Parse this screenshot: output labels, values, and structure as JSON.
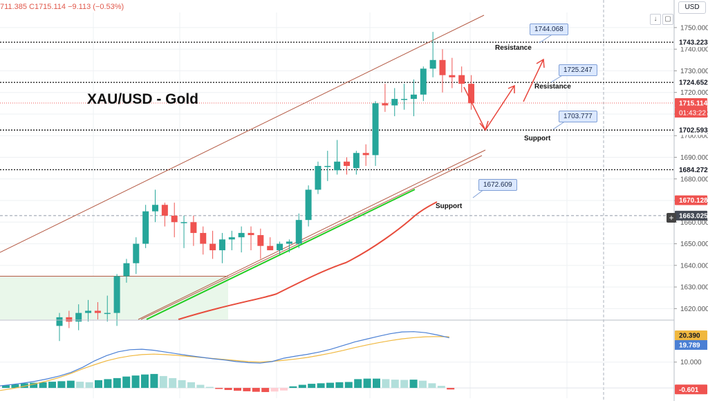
{
  "header": {
    "ohlc_text": "711.385  C1715.114  −9.113 (−0.53%)",
    "currency": "USD",
    "download_icon": "down-arrow-icon",
    "fullscreen_icon": "square-icon"
  },
  "title": "XAU/USD - Gold",
  "annotations": {
    "resistance": "Resistance",
    "support": "Support"
  },
  "colors": {
    "up": "#26a69a",
    "down": "#ef5350",
    "channel": "#b45a44",
    "green_line": "#22cc22",
    "red_ma": "#e74c3c",
    "macd_line": "#4a7fd4",
    "signal_line": "#f0b840",
    "box_fill": "#e9f7ea"
  },
  "chart_data": {
    "type": "candlestick",
    "symbol": "XAU/USD",
    "ylim": [
      1615,
      1757
    ],
    "y_ticks": [
      1620,
      1630,
      1640,
      1650,
      1660,
      1670,
      1680,
      1690,
      1700,
      1710,
      1720,
      1730,
      1740,
      1750
    ],
    "y_tick_labels": [
      "1620.000",
      "1630.000",
      "1640.000",
      "1650.000",
      "1660.000",
      "1670.000",
      "1680.000",
      "1690.000",
      "1700.000",
      "1710.000",
      "1720.000",
      "1730.000",
      "1740.000",
      "1750.000"
    ],
    "candles": [
      {
        "o": 1612,
        "h": 1618,
        "l": 1605,
        "c": 1616
      },
      {
        "o": 1616,
        "h": 1619,
        "l": 1611,
        "c": 1614
      },
      {
        "o": 1614,
        "h": 1622,
        "l": 1610,
        "c": 1618
      },
      {
        "o": 1618,
        "h": 1624,
        "l": 1614,
        "c": 1619
      },
      {
        "o": 1619,
        "h": 1623,
        "l": 1615,
        "c": 1618
      },
      {
        "o": 1618,
        "h": 1626,
        "l": 1614,
        "c": 1618
      },
      {
        "o": 1618,
        "h": 1636,
        "l": 1612,
        "c": 1635
      },
      {
        "o": 1635,
        "h": 1643,
        "l": 1632,
        "c": 1641
      },
      {
        "o": 1641,
        "h": 1653,
        "l": 1636,
        "c": 1650
      },
      {
        "o": 1650,
        "h": 1668,
        "l": 1648,
        "c": 1665
      },
      {
        "o": 1665,
        "h": 1675,
        "l": 1660,
        "c": 1668
      },
      {
        "o": 1668,
        "h": 1669,
        "l": 1658,
        "c": 1663
      },
      {
        "o": 1663,
        "h": 1669,
        "l": 1653,
        "c": 1660
      },
      {
        "o": 1660,
        "h": 1663,
        "l": 1648,
        "c": 1660
      },
      {
        "o": 1660,
        "h": 1663,
        "l": 1649,
        "c": 1655
      },
      {
        "o": 1655,
        "h": 1658,
        "l": 1645,
        "c": 1650
      },
      {
        "o": 1650,
        "h": 1656,
        "l": 1643,
        "c": 1647
      },
      {
        "o": 1647,
        "h": 1655,
        "l": 1641,
        "c": 1652
      },
      {
        "o": 1652,
        "h": 1656,
        "l": 1647,
        "c": 1653
      },
      {
        "o": 1653,
        "h": 1658,
        "l": 1646,
        "c": 1655
      },
      {
        "o": 1655,
        "h": 1658,
        "l": 1647,
        "c": 1654
      },
      {
        "o": 1654,
        "h": 1657,
        "l": 1643,
        "c": 1649
      },
      {
        "o": 1649,
        "h": 1653,
        "l": 1647,
        "c": 1647
      },
      {
        "o": 1647,
        "h": 1651,
        "l": 1645,
        "c": 1650
      },
      {
        "o": 1650,
        "h": 1652,
        "l": 1646,
        "c": 1651
      },
      {
        "o": 1650,
        "h": 1664,
        "l": 1648,
        "c": 1661
      },
      {
        "o": 1661,
        "h": 1677,
        "l": 1658,
        "c": 1675
      },
      {
        "o": 1675,
        "h": 1688,
        "l": 1673,
        "c": 1686
      },
      {
        "o": 1686,
        "h": 1693,
        "l": 1679,
        "c": 1686
      },
      {
        "o": 1684,
        "h": 1698,
        "l": 1682,
        "c": 1688
      },
      {
        "o": 1688,
        "h": 1690,
        "l": 1682,
        "c": 1686
      },
      {
        "o": 1685,
        "h": 1693,
        "l": 1682,
        "c": 1692
      },
      {
        "o": 1692,
        "h": 1696,
        "l": 1686,
        "c": 1691
      },
      {
        "o": 1691,
        "h": 1716,
        "l": 1686,
        "c": 1715
      },
      {
        "o": 1715,
        "h": 1724,
        "l": 1711,
        "c": 1714
      },
      {
        "o": 1714,
        "h": 1722,
        "l": 1709,
        "c": 1717
      },
      {
        "o": 1717,
        "h": 1724,
        "l": 1712,
        "c": 1717
      },
      {
        "o": 1717,
        "h": 1726,
        "l": 1709,
        "c": 1719
      },
      {
        "o": 1719,
        "h": 1732,
        "l": 1716,
        "c": 1731
      },
      {
        "o": 1731,
        "h": 1748,
        "l": 1727,
        "c": 1735
      },
      {
        "o": 1735,
        "h": 1740,
        "l": 1720,
        "c": 1728
      },
      {
        "o": 1728,
        "h": 1736,
        "l": 1722,
        "c": 1727
      },
      {
        "o": 1728,
        "h": 1732,
        "l": 1720,
        "c": 1724
      },
      {
        "o": 1724,
        "h": 1728,
        "l": 1712,
        "c": 1715
      }
    ],
    "price_levels": [
      {
        "value": 1743.223,
        "label": "1743.223"
      },
      {
        "value": 1724.652,
        "label": "1724.652"
      },
      {
        "value": 1702.593,
        "label": "1702.593"
      },
      {
        "value": 1684.272,
        "label": "1684.272"
      }
    ],
    "current_price": {
      "value": 1715.114,
      "label": "1715.114",
      "countdown": "01:43:22"
    },
    "other_level": {
      "value": 1670.128,
      "label": "1670.128"
    },
    "crosshair": {
      "value": 1663.025,
      "label": "1663.025"
    },
    "callouts": [
      {
        "label": "1744.068",
        "value": 1744.068
      },
      {
        "label": "1725.247",
        "value": 1725.247
      },
      {
        "label": "1703.777",
        "value": 1703.777
      },
      {
        "label": "1672.609",
        "value": 1672.609
      }
    ],
    "macd": {
      "ylim": [
        -4,
        26
      ],
      "tick_label": "10.000",
      "tick_value": 10,
      "upper_label": "20.390",
      "upper_value": 20.39,
      "mid_label": "19.789",
      "mid_value": 19.789,
      "hist_label": "-0.601",
      "hist_value": -0.601,
      "histogram": [
        1,
        1.4,
        1.8,
        2,
        2.2,
        2.4,
        2.6,
        2.8,
        2.4,
        2.2,
        3,
        3.4,
        3.8,
        4.4,
        4.8,
        5.2,
        5.4,
        4.6,
        3.8,
        3,
        2.2,
        1.2,
        0.4,
        -0.4,
        -0.8,
        -1.1,
        -1.3,
        -1.5,
        -1.6,
        -1.4,
        -1,
        0.6,
        1.2,
        1.6,
        1.8,
        2,
        2.2,
        2.3,
        3.4,
        3.6,
        3.6,
        3.4,
        3.2,
        3.1,
        3.2,
        2.8,
        1.8,
        0.8,
        -0.6
      ],
      "macd_line": [
        0.8,
        1.3,
        1.9,
        2.6,
        3.5,
        4.6,
        6,
        8,
        10.5,
        12.5,
        14,
        14.8,
        15,
        14.6,
        13.9,
        13.2,
        12.5,
        11.9,
        11.3,
        10.8,
        10.2,
        9.8,
        9.6,
        10.2,
        11.5,
        12.3,
        13,
        13.9,
        15,
        16.4,
        17.8,
        18.9,
        20,
        21,
        21.7,
        21.8,
        21.4,
        20.5,
        19.4
      ],
      "signal_line": [
        -1,
        -0.3,
        0.6,
        1.6,
        2.7,
        4,
        5.6,
        7.4,
        9,
        10.5,
        11.6,
        12.4,
        12.9,
        13.1,
        12.9,
        12.6,
        12.2,
        11.8,
        11.4,
        11,
        10.6,
        10.2,
        10,
        10.3,
        10.7,
        11.2,
        11.8,
        12.6,
        13.5,
        14.5,
        15.6,
        16.6,
        17.5,
        18.3,
        19,
        19.5,
        19.8,
        19.9,
        19.8
      ]
    }
  }
}
